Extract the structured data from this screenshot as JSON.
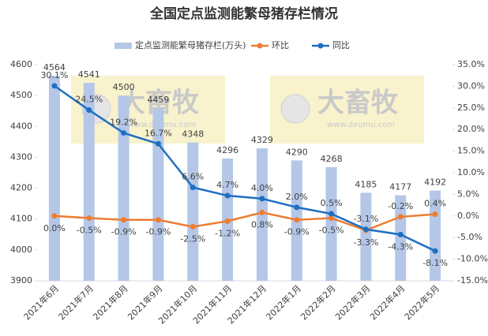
{
  "chart_data": {
    "type": "bar-line",
    "title": "全国定点监测能繁母猪存栏情况",
    "categories": [
      "2021年6月",
      "2021年7月",
      "2021年8月",
      "2021年9月",
      "2021年10月",
      "2021年11月",
      "2021年12月",
      "2022年1月",
      "2022年2月",
      "2022年3月",
      "2022年4月",
      "2022年5月"
    ],
    "series": [
      {
        "name": "定点监测能繁母猪存栏(万头)",
        "type": "bar",
        "color": "#b4c7e7",
        "values": [
          4564,
          4541,
          4500,
          4459,
          4348,
          4296,
          4329,
          4290,
          4268,
          4185,
          4177,
          4192
        ]
      },
      {
        "name": "环比",
        "type": "line",
        "axis": "y2",
        "color": "#ed7d31",
        "values": [
          0.0,
          -0.5,
          -0.9,
          -0.9,
          -2.5,
          -1.2,
          0.8,
          -0.9,
          -0.5,
          -3.3,
          -0.2,
          0.4
        ],
        "value_labels": [
          "0.0%",
          "-0.5%",
          "-0.9%",
          "-0.9%",
          "-2.5%",
          "-1.2%",
          "0.8%",
          "-0.9%",
          "-0.5%",
          "-3.3%",
          "-0.2%",
          "0.4%"
        ]
      },
      {
        "name": "同比",
        "type": "line",
        "axis": "y2",
        "color": "#1f6fc0",
        "values": [
          30.1,
          24.5,
          19.2,
          16.7,
          6.6,
          4.7,
          4.0,
          2.0,
          0.5,
          -3.1,
          -4.3,
          -8.1
        ],
        "value_labels": [
          "30.1%",
          "24.5%",
          "19.2%",
          "16.7%",
          "6.6%",
          "4.7%",
          "4.0%",
          "2.0%",
          "0.5%",
          "-3.1%",
          "-4.3%",
          "-8.1%"
        ]
      }
    ],
    "ylim": [
      3900,
      4600
    ],
    "yticks": [
      3900,
      4000,
      4100,
      4200,
      4300,
      4400,
      4500,
      4600
    ],
    "y2lim": [
      -15,
      35
    ],
    "y2ticks": [
      {
        "value": -15,
        "label": "-15.0%"
      },
      {
        "value": -10,
        "label": "-10.0%"
      },
      {
        "value": -5,
        "label": "-5.0%"
      },
      {
        "value": 0,
        "label": "0.0%"
      },
      {
        "value": 5,
        "label": "5.0%"
      },
      {
        "value": 10,
        "label": "10.0%"
      },
      {
        "value": 15,
        "label": "15.0%"
      },
      {
        "value": 20,
        "label": "20.0%"
      },
      {
        "value": 25,
        "label": "25.0%"
      },
      {
        "value": 30,
        "label": "30.0%"
      },
      {
        "value": 35,
        "label": "35.0%"
      }
    ],
    "legend": "top",
    "watermark": {
      "text": "大畜牧",
      "url": "www.dxumu.com"
    }
  }
}
